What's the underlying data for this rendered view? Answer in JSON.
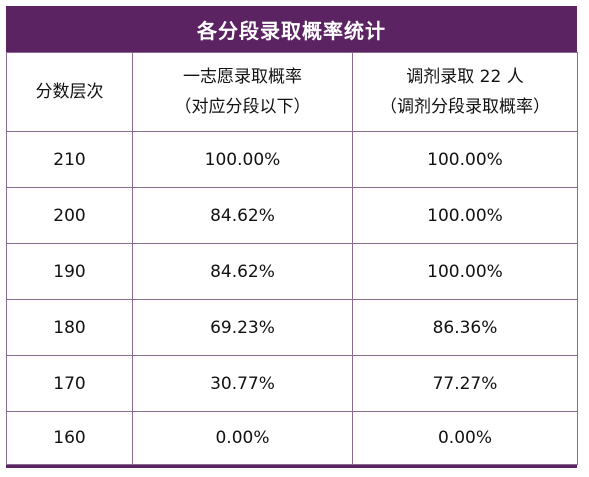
{
  "title": "各分段录取概率统计",
  "headers": {
    "col1": "分数层次",
    "col2_line1": "一志愿录取概率",
    "col2_line2": "（对应分段以下）",
    "col3_line1": "调剂录取 22 人",
    "col3_line2": "（调剂分段录取概率）"
  },
  "rows": [
    {
      "score": "210",
      "first_choice": "100.00%",
      "adjusted": "100.00%"
    },
    {
      "score": "200",
      "first_choice": "84.62%",
      "adjusted": "100.00%"
    },
    {
      "score": "190",
      "first_choice": "84.62%",
      "adjusted": "100.00%"
    },
    {
      "score": "180",
      "first_choice": "69.23%",
      "adjusted": "86.36%"
    },
    {
      "score": "170",
      "first_choice": "30.77%",
      "adjusted": "77.27%"
    },
    {
      "score": "160",
      "first_choice": "0.00%",
      "adjusted": "0.00%"
    }
  ]
}
